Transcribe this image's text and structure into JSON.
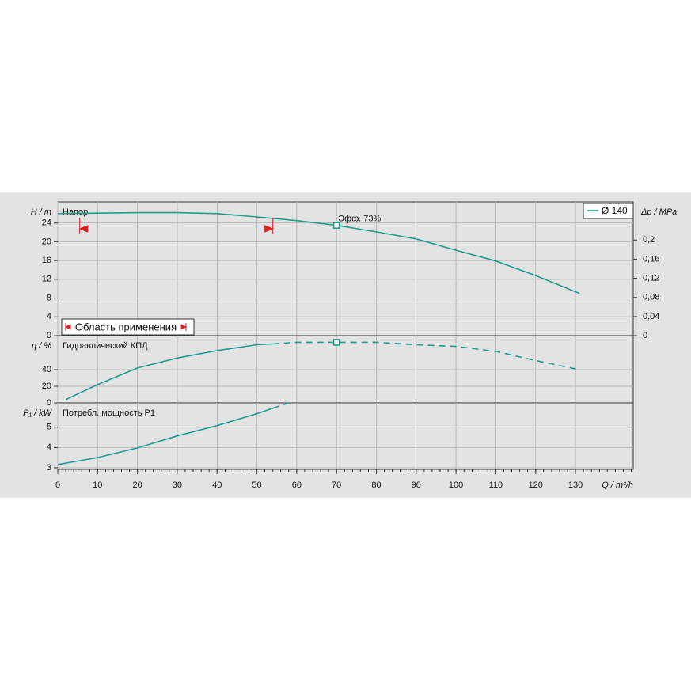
{
  "chart_data": [
    {
      "type": "line",
      "title": "Напор",
      "ylabel": "H / m",
      "y2label": "Δp / MPa",
      "xlim": [
        0,
        144.5
      ],
      "ylim": [
        0,
        28.5
      ],
      "yticks": [
        0,
        4,
        8,
        12,
        16,
        20,
        24
      ],
      "y2lim": [
        0,
        0.28
      ],
      "y2ticks": [
        0,
        {
          "value": 0.04,
          "label": "0,04"
        },
        {
          "value": 0.08,
          "label": "0,08"
        },
        {
          "value": 0.12,
          "label": "0,12"
        },
        {
          "value": 0.16,
          "label": "0,16"
        },
        {
          "value": 0.2,
          "label": "0,2"
        }
      ],
      "x": [
        0,
        10,
        20,
        30,
        40,
        50,
        60,
        70,
        80,
        90,
        100,
        110,
        120,
        131
      ],
      "series": [
        {
          "name": "Ø 140",
          "color": "#1e9c8c",
          "style": "solid",
          "values": [
            26,
            26.1,
            26.2,
            26.2,
            26,
            25.3,
            24.5,
            23.5,
            22.1,
            20.6,
            18.2,
            15.9,
            12.8,
            9
          ]
        }
      ],
      "duty_point": {
        "x": 70,
        "y": 23.5,
        "label": "Эфф.  73%"
      },
      "range": {
        "label": "Область применения",
        "x": [
          5.5,
          54
        ],
        "color": "#e02020"
      },
      "grid": true
    },
    {
      "type": "line",
      "title": "Гидравлический КПД",
      "ylabel": "η / %",
      "xlim": [
        0,
        144.5
      ],
      "ylim": [
        0,
        81
      ],
      "yticks": [
        0,
        20,
        40
      ],
      "x": [
        2,
        10,
        20,
        30,
        40,
        50,
        54,
        60,
        70,
        80,
        90,
        100,
        110,
        120,
        131
      ],
      "series": [
        {
          "color": "#1e9c8c",
          "style": "solid",
          "values": [
            4,
            22,
            42,
            54,
            63,
            70,
            71,
            null,
            null,
            null,
            null,
            null,
            null,
            null,
            null
          ]
        },
        {
          "color": "#1e9c8c",
          "style": "dashed",
          "values": [
            null,
            null,
            null,
            null,
            null,
            null,
            71,
            73,
            73,
            73,
            70,
            68,
            62,
            51,
            40
          ]
        }
      ],
      "duty_point": {
        "x": 70,
        "y": 73
      },
      "grid": true
    },
    {
      "type": "line",
      "title": "Потребл. мощность P1",
      "ylabel": "P₁ / kW",
      "xlabel": "Q / m³/h",
      "xlim": [
        0,
        144.5
      ],
      "ylim": [
        2.92,
        6.2
      ],
      "yticks": [
        3,
        4,
        5
      ],
      "xticks": [
        0,
        10,
        20,
        30,
        40,
        50,
        60,
        70,
        80,
        90,
        100,
        110,
        120,
        130
      ],
      "x": [
        0,
        5.5,
        10,
        20,
        30,
        40,
        50,
        54,
        58
      ],
      "series": [
        {
          "color": "#1e9c8c",
          "style": "solid",
          "values": [
            3.16,
            3.35,
            3.5,
            3.98,
            4.57,
            5.08,
            5.67,
            5.94,
            null
          ]
        },
        {
          "color": "#1e9c8c",
          "style": "dashed",
          "values": [
            null,
            null,
            null,
            null,
            null,
            null,
            null,
            5.94,
            6.2
          ]
        }
      ],
      "grid": true
    }
  ]
}
